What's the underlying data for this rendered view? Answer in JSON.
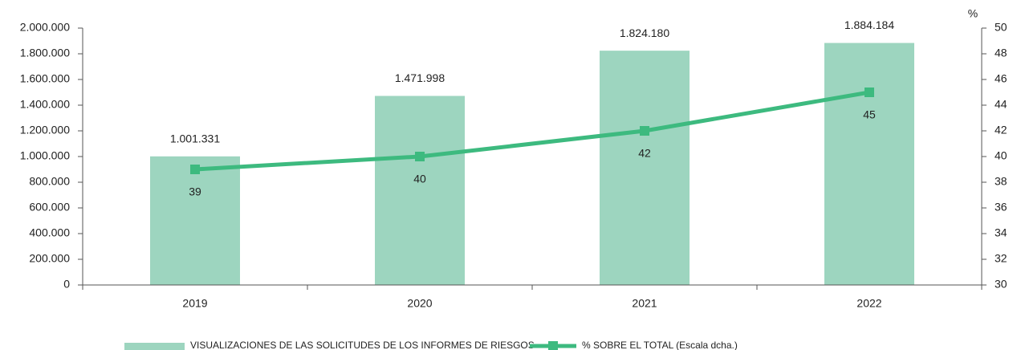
{
  "chart_data": {
    "type": "bar-line",
    "categories": [
      "2019",
      "2020",
      "2021",
      "2022"
    ],
    "series": [
      {
        "name": "VISUALIZACIONES DE LAS SOLICITUDES DE LOS INFORMES DE RIESGOS",
        "type": "bar",
        "color": "#9dd5bf",
        "values": [
          1001331,
          1471998,
          1824180,
          1884184
        ],
        "value_labels": [
          "1.001.331",
          "1.471.998",
          "1.824.180",
          "1.884.184"
        ]
      },
      {
        "name": "% SOBRE EL TOTAL (Escala dcha.)",
        "type": "line",
        "axis": "y2",
        "color": "#3dba7f",
        "values": [
          39,
          40,
          42,
          45
        ]
      }
    ],
    "ylim": [
      0,
      2000000
    ],
    "yticks": [
      0,
      {
        "value": 200000,
        "label": "200.000"
      },
      {
        "value": 400000,
        "label": "400.000"
      },
      {
        "value": 600000,
        "label": "600.000"
      },
      {
        "value": 800000,
        "label": "800.000"
      },
      {
        "value": 1000000,
        "label": "1.000.000"
      },
      {
        "value": 1200000,
        "label": "1.200.000"
      },
      {
        "value": 1400000,
        "label": "1.400.000"
      },
      {
        "value": 1600000,
        "label": "1.600.000"
      },
      {
        "value": 1800000,
        "label": "1.800.000"
      },
      {
        "value": 2000000,
        "label": "2.000.000"
      }
    ],
    "y2lim": [
      30,
      50
    ],
    "y2ticks": [
      30,
      32,
      34,
      36,
      38,
      40,
      42,
      44,
      46,
      48,
      50
    ],
    "y2_label": "%",
    "grid": false,
    "legend": "bottom"
  }
}
